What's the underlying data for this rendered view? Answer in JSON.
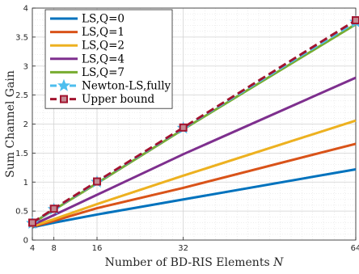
{
  "chart_data": {
    "type": "line",
    "title": "",
    "xlabel": "Number of BD-RIS Elements",
    "xlabel_var": "N",
    "ylabel": "Sum Channel Gain",
    "xlim": [
      4,
      64
    ],
    "ylim": [
      0,
      4
    ],
    "x_ticks": [
      4,
      8,
      16,
      32,
      64
    ],
    "y_ticks": [
      0,
      0.5,
      1,
      1.5,
      2,
      2.5,
      3,
      3.5,
      4
    ],
    "x_tick_labels": [
      "4",
      "8",
      "16",
      "32",
      "64"
    ],
    "y_tick_labels": [
      "0",
      "0.5",
      "1",
      "1.5",
      "2",
      "2.5",
      "3",
      "3.5",
      "4"
    ],
    "grid": true,
    "minor_grid": true,
    "legend_position": "top-left",
    "x": [
      4,
      8,
      16,
      32,
      64
    ],
    "series": [
      {
        "name": "LS,Q=0",
        "color": "#0072BD",
        "style": "solid",
        "marker": "none",
        "values": [
          0.22,
          0.3,
          0.44,
          0.7,
          1.22
        ]
      },
      {
        "name": "LS,Q=1",
        "color": "#D95319",
        "style": "solid",
        "marker": "none",
        "values": [
          0.23,
          0.33,
          0.55,
          0.9,
          1.66
        ]
      },
      {
        "name": "LS,Q=2",
        "color": "#EDB120",
        "style": "solid",
        "marker": "none",
        "values": [
          0.24,
          0.36,
          0.62,
          1.11,
          2.06
        ]
      },
      {
        "name": "LS,Q=4",
        "color": "#7E2F8E",
        "style": "solid",
        "marker": "none",
        "values": [
          0.26,
          0.43,
          0.78,
          1.48,
          2.8
        ]
      },
      {
        "name": "LS,Q=7",
        "color": "#77AC30",
        "style": "solid",
        "marker": "none",
        "values": [
          0.29,
          0.52,
          0.98,
          1.91,
          3.72
        ]
      },
      {
        "name": "Newton-LS,fully",
        "color": "#4DBEEE",
        "style": "dashed",
        "marker": "star",
        "values": [
          0.29,
          0.53,
          1.0,
          1.93,
          3.76
        ]
      },
      {
        "name": "Upper bound",
        "color": "#A2142F",
        "style": "dashed",
        "marker": "square",
        "values": [
          0.3,
          0.54,
          1.01,
          1.94,
          3.79
        ]
      }
    ]
  }
}
